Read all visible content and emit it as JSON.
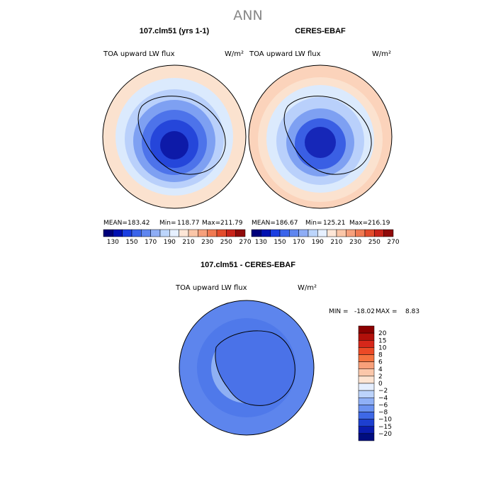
{
  "page": {
    "title": "ANN"
  },
  "chart_data": [
    {
      "type": "heatmap",
      "projection": "south-polar",
      "title": "107.clm51 (yrs 1-1)",
      "subtitle_left": "TOA upward LW flux",
      "subtitle_right": "W/m²",
      "stats": {
        "mean_label": "MEAN=",
        "mean": "183.42",
        "min_label": "Min=",
        "min": "118.77",
        "max_label": "Max=",
        "max": "211.79"
      },
      "colorbar": {
        "orientation": "horizontal",
        "levels": [
          130,
          150,
          170,
          190,
          210,
          230,
          250,
          270
        ],
        "tick_labels": [
          "130",
          "150",
          "170",
          "190",
          "210",
          "230",
          "250",
          "270"
        ],
        "colors": [
          "#00007a",
          "#0010b0",
          "#1a3ee0",
          "#3a64ea",
          "#5f86ef",
          "#8eadf5",
          "#bcd5fb",
          "#e6f0ff",
          "#fde6d6",
          "#fac6a8",
          "#f6a07c",
          "#f07a52",
          "#e34c2c",
          "#c8241a",
          "#8f0a0a"
        ]
      },
      "rings": [
        "#fbe2cf",
        "#dbeafd",
        "#b9d0fb",
        "#7ea0f2",
        "#4d73ea",
        "#2546da",
        "#0d1aa8"
      ]
    },
    {
      "type": "heatmap",
      "projection": "south-polar",
      "title": "CERES-EBAF",
      "subtitle_left": "TOA upward LW flux",
      "subtitle_right": "W/m²",
      "stats": {
        "mean_label": "MEAN=",
        "mean": "186.67",
        "min_label": "Min=",
        "min": "125.21",
        "max_label": "Max=",
        "max": "216.19"
      },
      "colorbar": {
        "orientation": "horizontal",
        "levels": [
          130,
          150,
          170,
          190,
          210,
          230,
          250,
          270
        ],
        "tick_labels": [
          "130",
          "150",
          "170",
          "190",
          "210",
          "230",
          "250",
          "270"
        ],
        "colors": [
          "#00007a",
          "#0010b0",
          "#1a3ee0",
          "#3a64ea",
          "#5f86ef",
          "#8eadf5",
          "#bcd5fb",
          "#e6f0ff",
          "#fde6d6",
          "#fac6a8",
          "#f6a07c",
          "#f07a52",
          "#e34c2c",
          "#c8241a",
          "#8f0a0a"
        ]
      },
      "rings": [
        "#fbd3bb",
        "#fbe2cf",
        "#dbeafd",
        "#b9d0fb",
        "#7ea0f2",
        "#3a5fe4",
        "#1627b8"
      ]
    },
    {
      "type": "heatmap",
      "projection": "south-polar",
      "title": "107.clm51 - CERES-EBAF",
      "subtitle_left": "TOA upward LW flux",
      "subtitle_right": "W/m²",
      "stats": {
        "min_label": "MIN =",
        "min": "-18.02",
        "max_label": "MAX =",
        "max": "8.83"
      },
      "colorbar": {
        "orientation": "vertical",
        "levels": [
          -20,
          -15,
          -10,
          -8,
          -6,
          -4,
          -2,
          0,
          2,
          4,
          6,
          8,
          10,
          15,
          20
        ],
        "tick_labels": [
          "20",
          "15",
          "10",
          "8",
          "6",
          "4",
          "2",
          "0",
          "−2",
          "−4",
          "−6",
          "−8",
          "−10",
          "−15",
          "−20"
        ],
        "colors": [
          "#8b0000",
          "#b2100a",
          "#d6271a",
          "#ec4a26",
          "#f5733f",
          "#f8a07a",
          "#fbc7aa",
          "#fde4d2",
          "#e4eeff",
          "#bcd3fb",
          "#8fb0f6",
          "#6b92f0",
          "#3e68e6",
          "#1d3fd0",
          "#0a1cae",
          "#000d80"
        ]
      },
      "rings": [
        "#5d85ed",
        "#4f79ea",
        "#8fb0f4",
        "#4c76e9"
      ]
    }
  ]
}
